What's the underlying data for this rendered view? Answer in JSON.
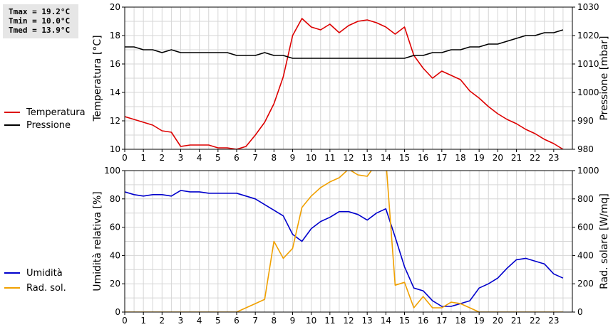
{
  "stats": {
    "tmax": "Tmax = 19.2°C",
    "tmin": "Tmin = 10.0°C",
    "tmed": "Tmed = 13.9°C"
  },
  "chart_data": [
    {
      "type": "line",
      "x_tick_labels": [
        "0",
        "1",
        "2",
        "3",
        "4",
        "5",
        "6",
        "7",
        "8",
        "9",
        "10",
        "11",
        "12",
        "13",
        "14",
        "15",
        "16",
        "17",
        "18",
        "19",
        "20",
        "21",
        "22",
        "23"
      ],
      "xlim": [
        0,
        24
      ],
      "ylabel": "Temperatura [°C]",
      "ylim": [
        10,
        20
      ],
      "y_ticks": [
        10,
        12,
        14,
        16,
        18,
        20
      ],
      "y2label": "Pressione [mbar]",
      "y2lim": [
        980,
        1030
      ],
      "y2_ticks": [
        980,
        990,
        1000,
        1010,
        1020,
        1030
      ],
      "grid": true,
      "legend_position": "left",
      "series": [
        {
          "name": "Temperatura",
          "color": "#dd0000",
          "axis": "left",
          "x": [
            0,
            0.5,
            1,
            1.5,
            2,
            2.5,
            3,
            3.5,
            4,
            4.5,
            5,
            5.5,
            6,
            6.5,
            7,
            7.5,
            8,
            8.5,
            9,
            9.5,
            10,
            10.5,
            11,
            11.5,
            12,
            12.5,
            13,
            13.5,
            14,
            14.5,
            15,
            15.5,
            16,
            16.5,
            17,
            17.5,
            18,
            18.5,
            19,
            19.5,
            20,
            20.5,
            21,
            21.5,
            22,
            22.5,
            23,
            23.5
          ],
          "y": [
            12.3,
            12.1,
            11.9,
            11.7,
            11.3,
            11.2,
            10.2,
            10.3,
            10.3,
            10.3,
            10.1,
            10.1,
            10.0,
            10.2,
            11.0,
            11.9,
            13.2,
            15.1,
            18.0,
            19.2,
            18.6,
            18.4,
            18.8,
            18.2,
            18.7,
            19.0,
            19.1,
            18.9,
            18.6,
            18.1,
            18.6,
            16.6,
            15.7,
            15.0,
            15.5,
            15.2,
            14.9,
            14.1,
            13.6,
            13.0,
            12.5,
            12.1,
            11.8,
            11.4,
            11.1,
            10.7,
            10.4,
            10.0
          ]
        },
        {
          "name": "Pressione",
          "color": "#000000",
          "axis": "right",
          "x": [
            0,
            0.5,
            1,
            1.5,
            2,
            2.5,
            3,
            3.5,
            4,
            4.5,
            5,
            5.5,
            6,
            6.5,
            7,
            7.5,
            8,
            8.5,
            9,
            9.5,
            10,
            10.5,
            11,
            11.5,
            12,
            12.5,
            13,
            13.5,
            14,
            14.5,
            15,
            15.5,
            16,
            16.5,
            17,
            17.5,
            18,
            18.5,
            19,
            19.5,
            20,
            20.5,
            21,
            21.5,
            22,
            22.5,
            23,
            23.5
          ],
          "y": [
            1016,
            1016,
            1015,
            1015,
            1014,
            1015,
            1014,
            1014,
            1014,
            1014,
            1014,
            1014,
            1013,
            1013,
            1013,
            1014,
            1013,
            1013,
            1012,
            1012,
            1012,
            1012,
            1012,
            1012,
            1012,
            1012,
            1012,
            1012,
            1012,
            1012,
            1012,
            1013,
            1013,
            1014,
            1014,
            1015,
            1015,
            1016,
            1016,
            1017,
            1017,
            1018,
            1019,
            1020,
            1020,
            1021,
            1021,
            1022
          ]
        }
      ]
    },
    {
      "type": "line",
      "x_tick_labels": [
        "0",
        "1",
        "2",
        "3",
        "4",
        "5",
        "6",
        "7",
        "8",
        "9",
        "10",
        "11",
        "12",
        "13",
        "14",
        "15",
        "16",
        "17",
        "18",
        "19",
        "20",
        "21",
        "22",
        "23"
      ],
      "xlim": [
        0,
        24
      ],
      "ylabel": "Umidità relativa [%]",
      "ylim": [
        0,
        100
      ],
      "y_ticks": [
        0,
        20,
        40,
        60,
        80,
        100
      ],
      "y2label": "Rad. solare [W/mq]",
      "y2lim": [
        0,
        1000
      ],
      "y2_ticks": [
        0,
        200,
        400,
        600,
        800,
        1000
      ],
      "grid": true,
      "legend_position": "left",
      "series": [
        {
          "name": "Umidità",
          "color": "#0000cc",
          "axis": "left",
          "x": [
            0,
            0.5,
            1,
            1.5,
            2,
            2.5,
            3,
            3.5,
            4,
            4.5,
            5,
            5.5,
            6,
            6.5,
            7,
            7.5,
            8,
            8.5,
            9,
            9.5,
            10,
            10.5,
            11,
            11.5,
            12,
            12.5,
            13,
            13.5,
            14,
            14.5,
            15,
            15.5,
            16,
            16.5,
            17,
            17.5,
            18,
            18.5,
            19,
            19.5,
            20,
            20.5,
            21,
            21.5,
            22,
            22.5,
            23,
            23.5
          ],
          "y": [
            85,
            83,
            82,
            83,
            83,
            82,
            86,
            85,
            85,
            84,
            84,
            84,
            84,
            82,
            80,
            76,
            72,
            68,
            55,
            50,
            59,
            64,
            67,
            71,
            71,
            69,
            65,
            70,
            73,
            53,
            32,
            17,
            15,
            8,
            4,
            4,
            6,
            8,
            17,
            20,
            24,
            31,
            37,
            38,
            36,
            34,
            27,
            24
          ]
        },
        {
          "name": "Rad. sol.",
          "color": "#f0a000",
          "axis": "right",
          "x": [
            0,
            0.5,
            1,
            1.5,
            2,
            2.5,
            3,
            3.5,
            4,
            4.5,
            5,
            5.5,
            6,
            6.5,
            7,
            7.5,
            8,
            8.5,
            9,
            9.5,
            10,
            10.5,
            11,
            11.5,
            12,
            12.5,
            13,
            13.5,
            14,
            14.5,
            15,
            15.5,
            16,
            16.5,
            17,
            17.5,
            18,
            18.5,
            19,
            19.5,
            20,
            20.5,
            21,
            21.5,
            22,
            22.5,
            23,
            23.5
          ],
          "y": [
            0,
            0,
            0,
            0,
            0,
            0,
            0,
            0,
            0,
            0,
            0,
            0,
            0,
            30,
            60,
            90,
            500,
            380,
            450,
            740,
            820,
            880,
            920,
            950,
            1010,
            970,
            960,
            1050,
            1080,
            190,
            210,
            30,
            110,
            30,
            30,
            70,
            60,
            30,
            0,
            0,
            0,
            0,
            0,
            0,
            0,
            0,
            0,
            0
          ]
        }
      ]
    }
  ]
}
